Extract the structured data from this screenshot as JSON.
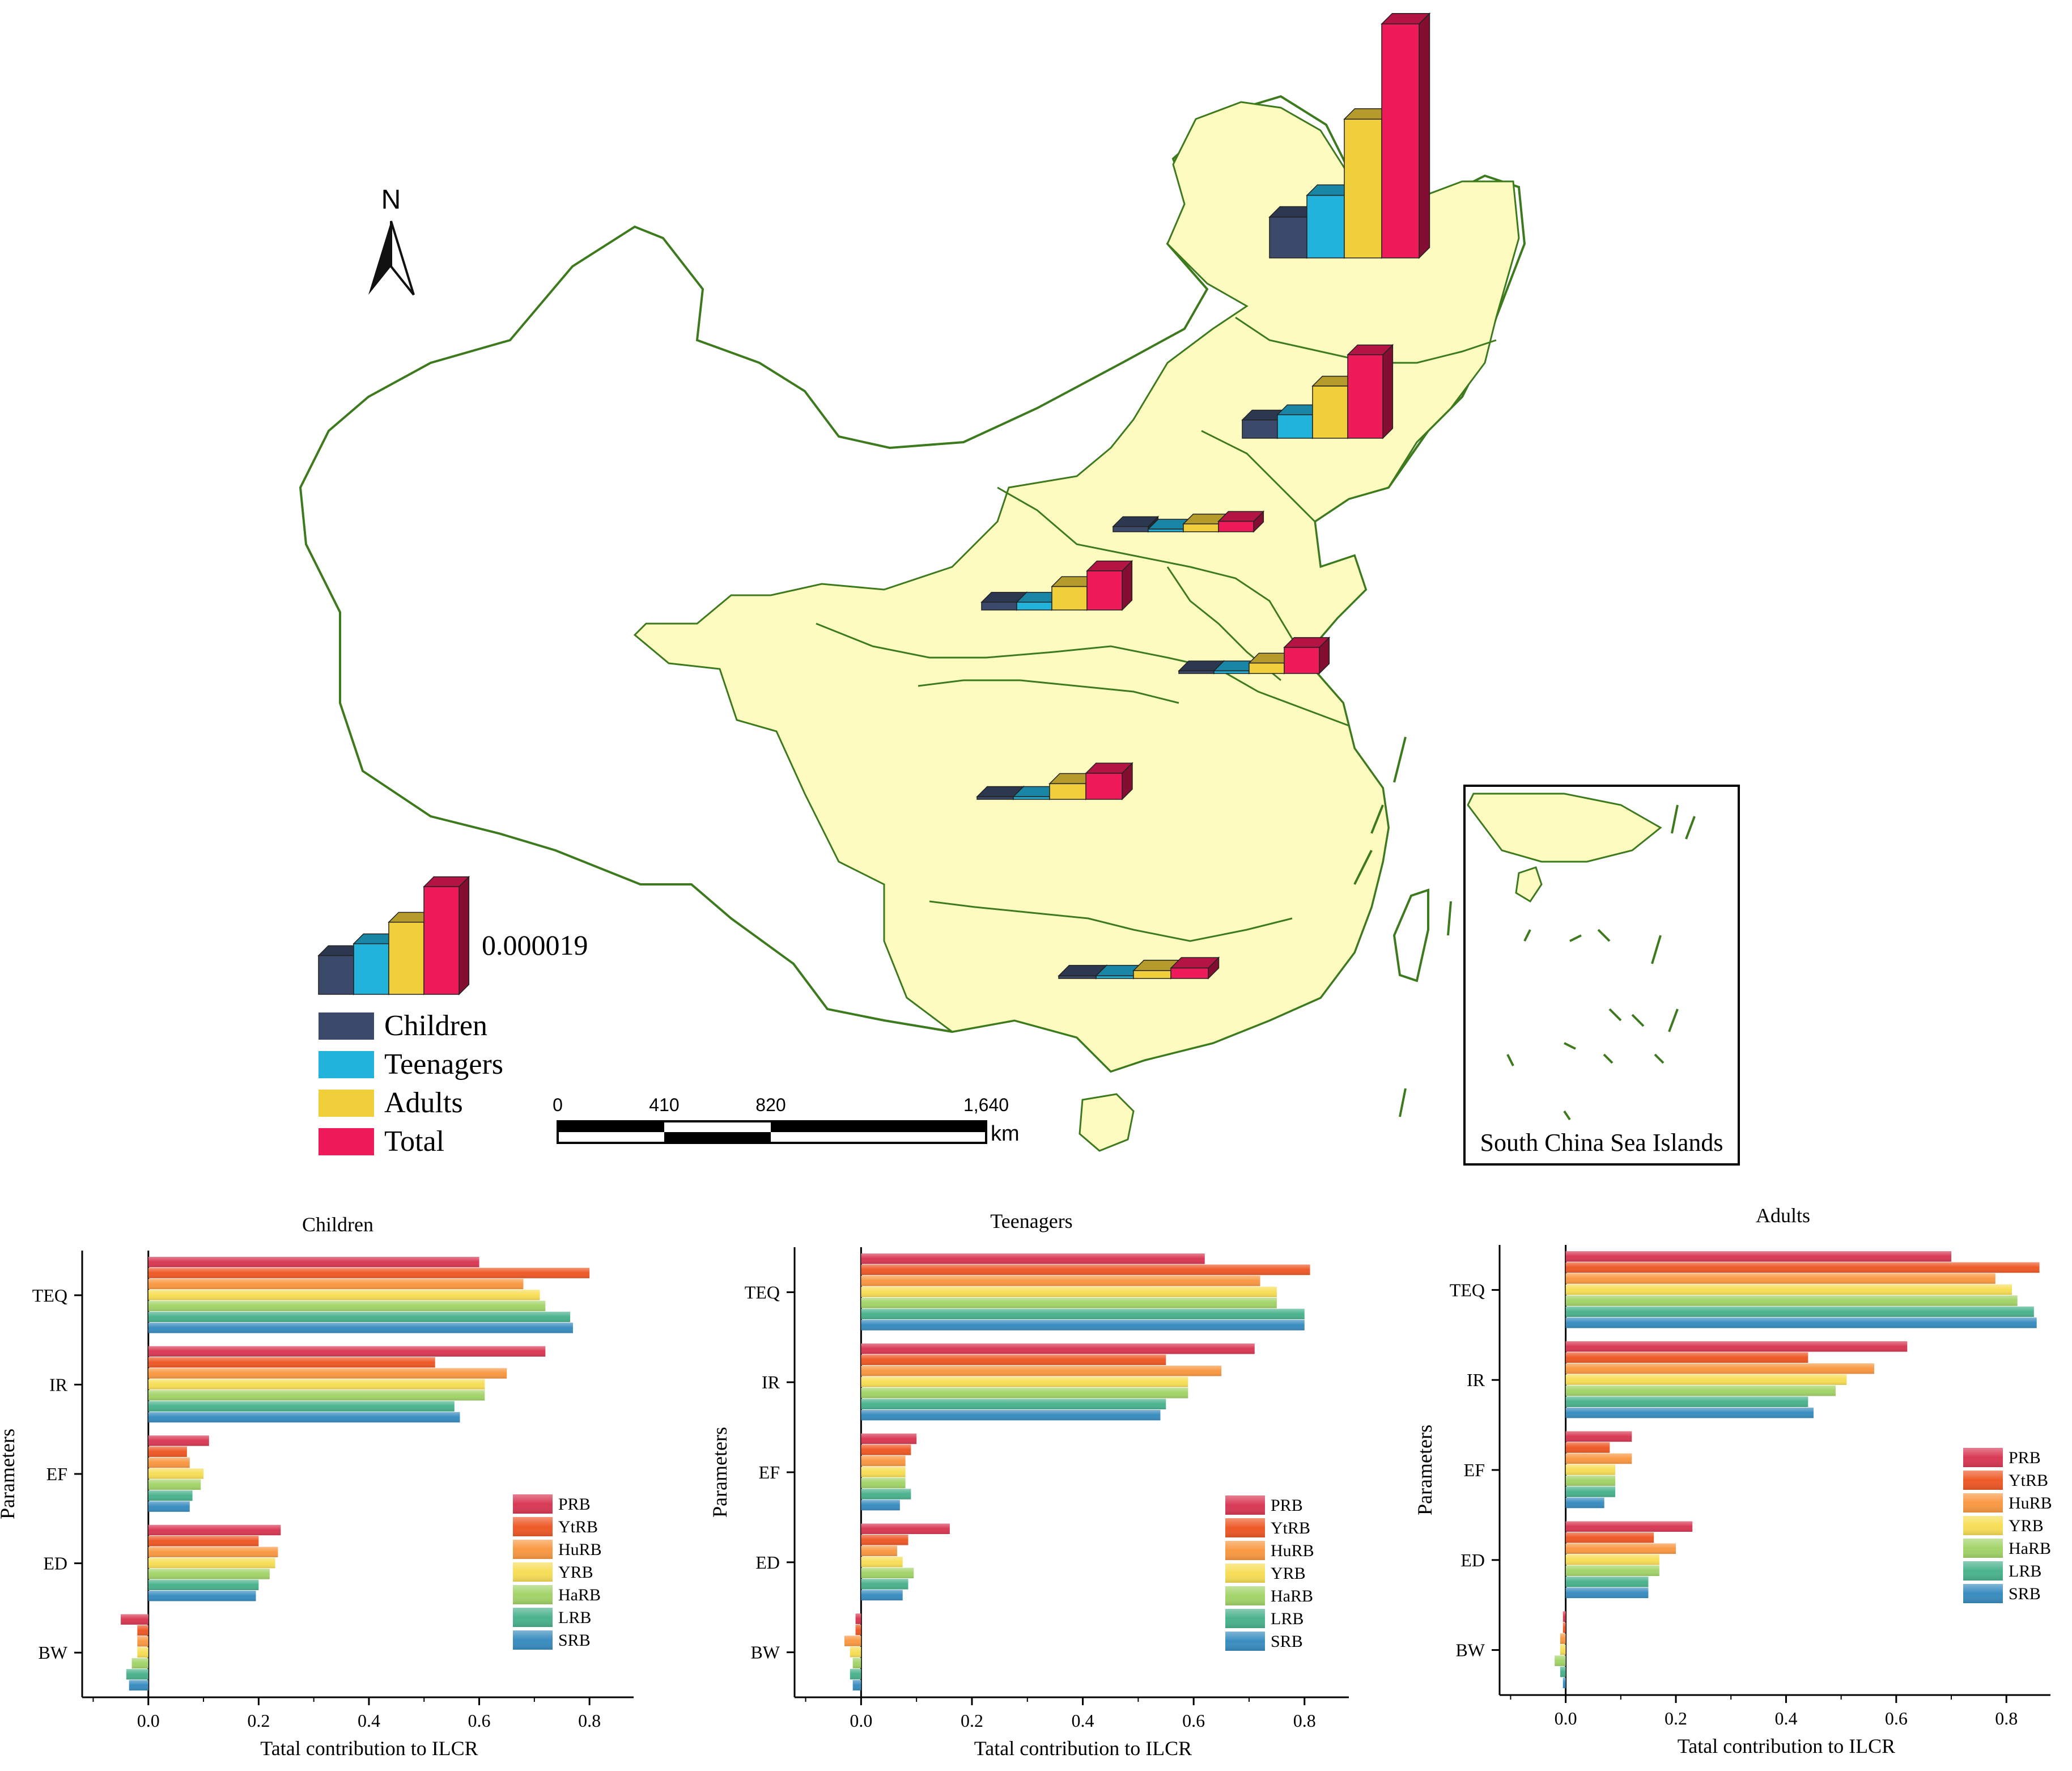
{
  "colors": {
    "children": "#3b4a6b",
    "teenagers": "#22b3dd",
    "adults": "#f0cf3a",
    "total": "#ee1a5a",
    "land": "#fdfbc0",
    "border": "#3d7a1e",
    "basins": {
      "PRB": "#d93a55",
      "YtRB": "#ee5a28",
      "HuRB": "#f99944",
      "YRB": "#f7de58",
      "HaRB": "#a3d46a",
      "LRB": "#4bb38d",
      "SRB": "#3a8dc0"
    }
  },
  "map": {
    "north_label": "N",
    "legend_value": "0.000019",
    "legend": [
      {
        "key": "children",
        "label": "Children"
      },
      {
        "key": "teenagers",
        "label": "Teenagers"
      },
      {
        "key": "adults",
        "label": "Adults"
      },
      {
        "key": "total",
        "label": "Total"
      }
    ],
    "scale_bar": {
      "ticks": [
        "0",
        "410",
        "820",
        "1,640"
      ],
      "unit": "km"
    },
    "inset_label": "South China Sea Islands"
  },
  "chart_data": [
    {
      "type": "bar",
      "title": "",
      "description_values": "map 3D bars: relative ILCR per basin in units of legend bar (legend total = 0.000019)",
      "categories": [
        "SRB",
        "LRB",
        "HaRB",
        "YRB",
        "HuRB",
        "YtRB",
        "PRB"
      ],
      "series": [
        {
          "name": "Children",
          "values": [
            1.5,
            0.7,
            0.2,
            0.3,
            0.1,
            0.1,
            0.1
          ]
        },
        {
          "name": "Teenagers",
          "values": [
            2.3,
            0.9,
            0.1,
            0.3,
            0.1,
            0.1,
            0.1
          ]
        },
        {
          "name": "Adults",
          "values": [
            5.1,
            2.0,
            0.3,
            0.9,
            0.4,
            0.6,
            0.3
          ]
        },
        {
          "name": "Total",
          "values": [
            8.6,
            3.2,
            0.4,
            1.5,
            1.0,
            1.0,
            0.4
          ]
        }
      ]
    },
    {
      "type": "bar",
      "title": "Children",
      "xlabel": "Tatal contribution to ILCR",
      "ylabel": "Parameters",
      "xlim": [
        -0.12,
        0.88
      ],
      "xticks": [
        "0.0",
        "0.2",
        "0.4",
        "0.6",
        "0.8"
      ],
      "categories": [
        "TEQ",
        "IR",
        "EF",
        "ED",
        "BW"
      ],
      "series": [
        {
          "name": "PRB",
          "values": [
            0.6,
            0.72,
            0.11,
            0.24,
            -0.05
          ]
        },
        {
          "name": "YtRB",
          "values": [
            0.8,
            0.52,
            0.07,
            0.2,
            -0.02
          ]
        },
        {
          "name": "HuRB",
          "values": [
            0.68,
            0.65,
            0.075,
            0.235,
            -0.02
          ]
        },
        {
          "name": "YRB",
          "values": [
            0.71,
            0.61,
            0.1,
            0.23,
            -0.02
          ]
        },
        {
          "name": "HaRB",
          "values": [
            0.72,
            0.61,
            0.095,
            0.22,
            -0.03
          ]
        },
        {
          "name": "LRB",
          "values": [
            0.765,
            0.555,
            0.08,
            0.2,
            -0.04
          ]
        },
        {
          "name": "SRB",
          "values": [
            0.77,
            0.565,
            0.075,
            0.195,
            -0.035
          ]
        }
      ]
    },
    {
      "type": "bar",
      "title": "Teenagers",
      "xlabel": "Tatal contribution to ILCR",
      "ylabel": "Parameters",
      "xlim": [
        -0.12,
        0.88
      ],
      "xticks": [
        "0.0",
        "0.2",
        "0.4",
        "0.6",
        "0.8"
      ],
      "categories": [
        "TEQ",
        "IR",
        "EF",
        "ED",
        "BW"
      ],
      "series": [
        {
          "name": "PRB",
          "values": [
            0.62,
            0.71,
            0.1,
            0.16,
            -0.01
          ]
        },
        {
          "name": "YtRB",
          "values": [
            0.81,
            0.55,
            0.09,
            0.085,
            -0.01
          ]
        },
        {
          "name": "HuRB",
          "values": [
            0.72,
            0.65,
            0.08,
            0.065,
            -0.03
          ]
        },
        {
          "name": "YRB",
          "values": [
            0.75,
            0.59,
            0.08,
            0.075,
            -0.02
          ]
        },
        {
          "name": "HaRB",
          "values": [
            0.75,
            0.59,
            0.08,
            0.095,
            -0.015
          ]
        },
        {
          "name": "LRB",
          "values": [
            0.8,
            0.55,
            0.09,
            0.085,
            -0.02
          ]
        },
        {
          "name": "SRB",
          "values": [
            0.8,
            0.54,
            0.07,
            0.075,
            -0.015
          ]
        }
      ]
    },
    {
      "type": "bar",
      "title": "Adults",
      "xlabel": "Tatal contribution to ILCR",
      "ylabel": "Parameters",
      "xlim": [
        -0.12,
        0.88
      ],
      "xticks": [
        "0.0",
        "0.2",
        "0.4",
        "0.6",
        "0.8"
      ],
      "categories": [
        "TEQ",
        "IR",
        "EF",
        "ED",
        "BW"
      ],
      "series": [
        {
          "name": "PRB",
          "values": [
            0.7,
            0.62,
            0.12,
            0.23,
            -0.005
          ]
        },
        {
          "name": "YtRB",
          "values": [
            0.86,
            0.44,
            0.08,
            0.16,
            -0.005
          ]
        },
        {
          "name": "HuRB",
          "values": [
            0.78,
            0.56,
            0.12,
            0.2,
            -0.01
          ]
        },
        {
          "name": "YRB",
          "values": [
            0.81,
            0.51,
            0.09,
            0.17,
            -0.01
          ]
        },
        {
          "name": "HaRB",
          "values": [
            0.82,
            0.49,
            0.09,
            0.17,
            -0.02
          ]
        },
        {
          "name": "LRB",
          "values": [
            0.85,
            0.44,
            0.09,
            0.15,
            -0.01
          ]
        },
        {
          "name": "SRB",
          "values": [
            0.855,
            0.45,
            0.07,
            0.15,
            -0.005
          ]
        }
      ]
    }
  ]
}
